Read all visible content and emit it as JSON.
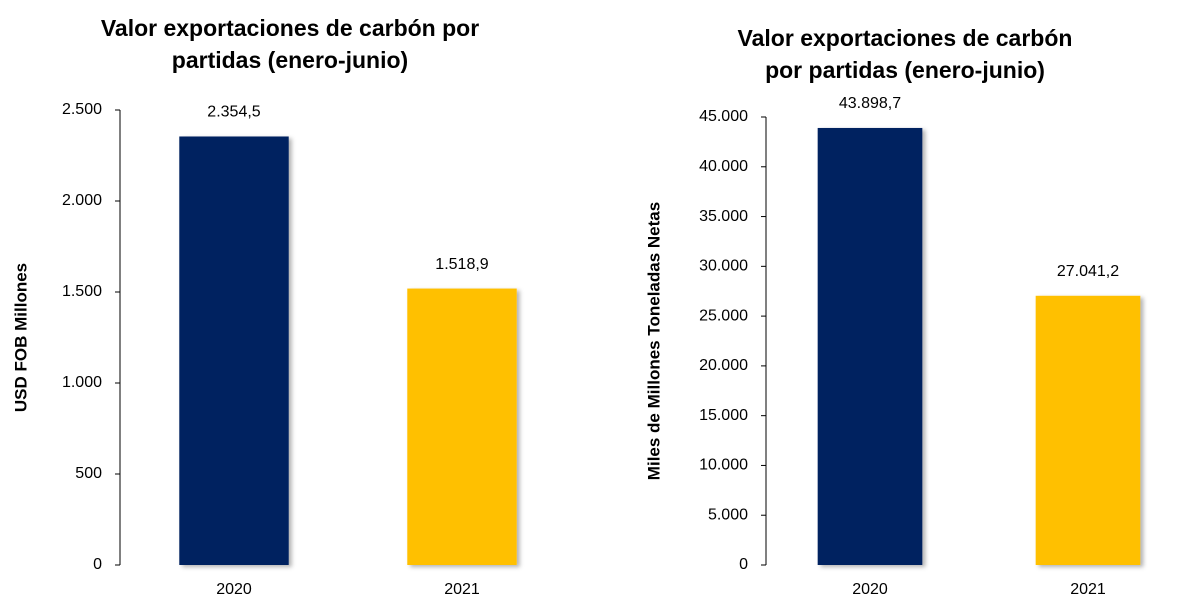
{
  "chart_data": [
    {
      "type": "bar",
      "title": [
        "Valor exportaciones de carbón por",
        "partidas (enero-junio)"
      ],
      "y_label": "USD FOB Millones",
      "categories": [
        "2020",
        "2021"
      ],
      "values": [
        2354.5,
        1518.9
      ],
      "value_labels": [
        "2.354,5",
        "1.518,9"
      ],
      "colors": [
        "#002060",
        "#FFC000"
      ],
      "ylim": [
        0,
        2500
      ],
      "yticks": [
        0,
        500,
        {
          "value": 1000,
          "label": "1.000"
        },
        {
          "value": 1500,
          "label": "1.500"
        },
        {
          "value": 2000,
          "label": "2.000"
        },
        {
          "value": 2500,
          "label": "2.500"
        }
      ],
      "grid": false
    },
    {
      "type": "bar",
      "title": [
        "Valor exportaciones de carbón",
        "por partidas (enero-junio)"
      ],
      "y_label": "Miles de Millones Toneladas Netas",
      "categories": [
        "2020",
        "2021"
      ],
      "values": [
        43898.7,
        27041.2
      ],
      "value_labels": [
        "43.898,7",
        "27.041,2"
      ],
      "colors": [
        "#002060",
        "#FFC000"
      ],
      "ylim": [
        0,
        45000
      ],
      "yticks": [
        0,
        {
          "value": 5000,
          "label": "5.000"
        },
        {
          "value": 10000,
          "label": "10.000"
        },
        {
          "value": 15000,
          "label": "15.000"
        },
        {
          "value": 20000,
          "label": "20.000"
        },
        {
          "value": 25000,
          "label": "25.000"
        },
        {
          "value": 30000,
          "label": "30.000"
        },
        {
          "value": 35000,
          "label": "35.000"
        },
        {
          "value": 40000,
          "label": "40.000"
        },
        {
          "value": 45000,
          "label": "45.000"
        }
      ],
      "grid": false
    }
  ]
}
